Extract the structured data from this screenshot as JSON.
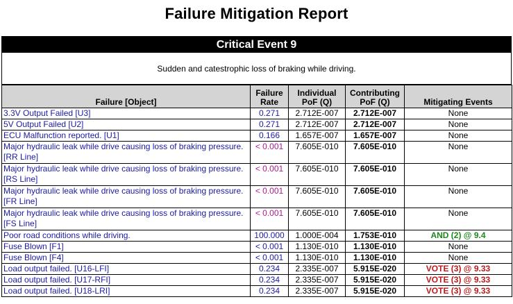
{
  "title": "Failure Mitigation Report",
  "event": {
    "header": "Critical Event 9",
    "description": "Sudden and catestrophic loss of braking while driving."
  },
  "columns": {
    "failure": "Failure [Object]",
    "rate": "Failure Rate",
    "individual": "Individual PoF (Q)",
    "contributing": "Contributing PoF (Q)",
    "mitigating": "Mitigating Events"
  },
  "rows": [
    {
      "name": "3.3V Output Failed [U3]",
      "rate": "0.271",
      "individual": "2.712E-007",
      "contributing": "2.712E-007",
      "mitigating": "None"
    },
    {
      "name": "5V Output Failed [U2]",
      "rate": "0.271",
      "individual": "2.712E-007",
      "contributing": "2.712E-007",
      "mitigating": "None"
    },
    {
      "name": "ECU Malfunction reported. [U1]",
      "rate": "0.166",
      "individual": "1.657E-007",
      "contributing": "1.657E-007",
      "mitigating": "None"
    },
    {
      "name": "Major hydraulic leak while drive causing loss of braking pressure. [RR Line]",
      "rate": "< 0.001",
      "individual": "7.605E-010",
      "contributing": "7.605E-010",
      "mitigating": "None"
    },
    {
      "name": "Major hydraulic leak while drive causing loss of braking pressure. [RS Line]",
      "rate": "< 0.001",
      "individual": "7.605E-010",
      "contributing": "7.605E-010",
      "mitigating": "None"
    },
    {
      "name": "Major hydraulic leak while drive causing loss of braking pressure. [FR Line]",
      "rate": "< 0.001",
      "individual": "7.605E-010",
      "contributing": "7.605E-010",
      "mitigating": "None"
    },
    {
      "name": "Major hydraulic leak while drive causing loss of braking pressure. [FS Line]",
      "rate": "< 0.001",
      "individual": "7.605E-010",
      "contributing": "7.605E-010",
      "mitigating": "None"
    },
    {
      "name": "Poor road conditions while driving.",
      "rate": "100.000",
      "individual": "1.000E-004",
      "contributing": "1.753E-010",
      "mitigating": "AND (2) @ 9.4"
    },
    {
      "name": "Fuse Blown [F1]",
      "rate": "< 0.001",
      "individual": "1.130E-010",
      "contributing": "1.130E-010",
      "mitigating": "None"
    },
    {
      "name": "Fuse Blown [F4]",
      "rate": "< 0.001",
      "individual": "1.130E-010",
      "contributing": "1.130E-010",
      "mitigating": "None"
    },
    {
      "name": "Load output failed. [U16-LFI]",
      "rate": "0.234",
      "individual": "2.335E-007",
      "contributing": "5.915E-020",
      "mitigating": "VOTE (3) @ 9.33"
    },
    {
      "name": "Load output failed. [U17-RFI]",
      "rate": "0.234",
      "individual": "2.335E-007",
      "contributing": "5.915E-020",
      "mitigating": "VOTE (3) @ 9.33"
    },
    {
      "name": "Load output failed. [U18-LRI]",
      "rate": "0.234",
      "individual": "2.335E-007",
      "contributing": "5.915E-020",
      "mitigating": "VOTE (3) @ 9.33"
    }
  ],
  "colors": {
    "name_text": "#1a1aa6",
    "rate_low": "#b0188f",
    "and_text": "#1a8a1a",
    "vote_text": "#c01818",
    "header_fill": "#d4d4d4"
  }
}
